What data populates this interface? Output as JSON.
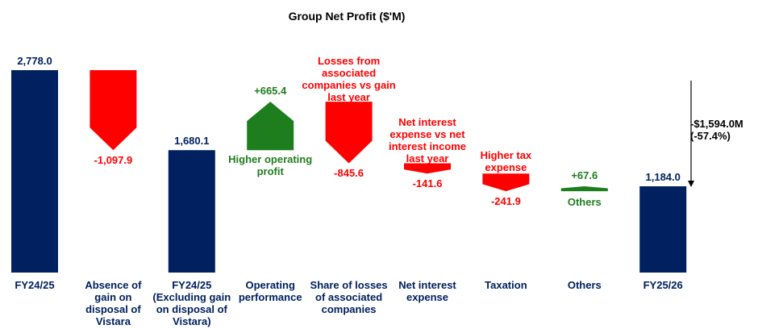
{
  "chart_data": {
    "type": "waterfall",
    "title": "Group Net Profit ($'M)",
    "categories": [
      "FY24/25",
      "Absence of gain on disposal of Vistara",
      "FY24/25 (Excluding gain on disposal of Vistara)",
      "Operating performance",
      "Share of losses of associated companies",
      "Net interest expense",
      "Taxation",
      "Others",
      "FY25/26"
    ],
    "measures": [
      "total",
      "delta",
      "total",
      "delta",
      "delta",
      "delta",
      "delta",
      "delta",
      "total"
    ],
    "values": [
      2778.0,
      -1097.9,
      1680.1,
      665.4,
      -845.6,
      -141.6,
      -241.9,
      67.6,
      1184.0
    ],
    "value_labels": [
      "2,778.0",
      "-1,097.9",
      "1,680.1",
      "+665.4",
      "-845.6",
      "-141.6",
      "-241.9",
      "+67.6",
      "1,184.0"
    ],
    "notes": [
      null,
      null,
      null,
      "Higher operating profit",
      "Losses from associated companies vs gain last year",
      "Net interest expense vs net interest income last year",
      "Higher tax expense",
      "Others",
      null
    ],
    "colors": {
      "total": "#002060",
      "decrease": "#ff0000",
      "increase": "#1e7e1e"
    },
    "side_note": "-$1,594.0M (-57.4%)"
  }
}
